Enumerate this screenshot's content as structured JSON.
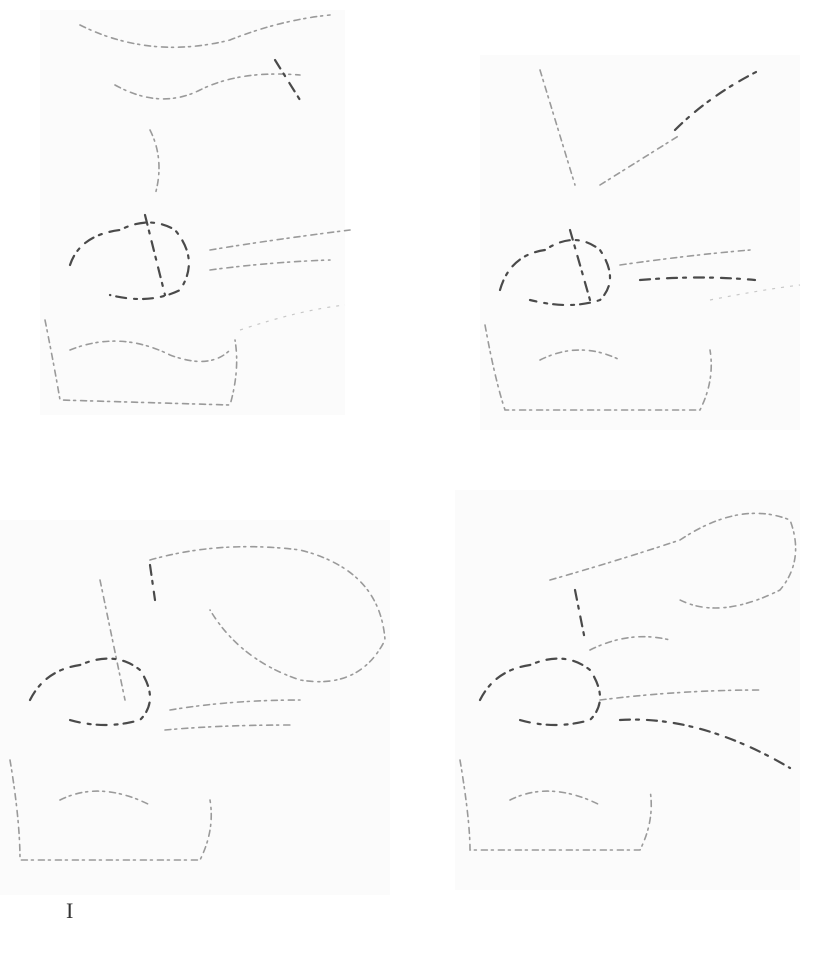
{
  "labels": {
    "panel_3": "I"
  }
}
